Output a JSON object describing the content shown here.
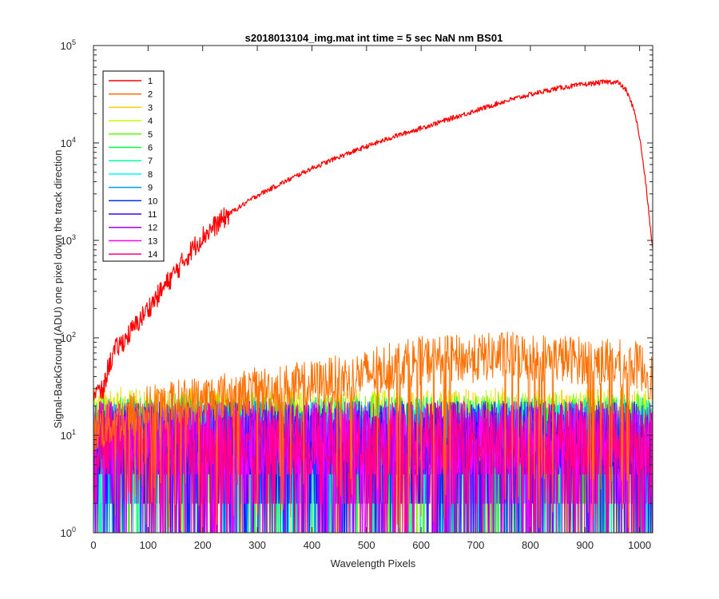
{
  "chart_data": {
    "type": "line",
    "title": "s2018013104_img.mat int time = 5 sec  NaN nm BS01",
    "xlabel": "Wavelength Pixels",
    "ylabel": "Signal-BackGround (ADU) one pixel down the track direction",
    "xlim": [
      0,
      1024
    ],
    "ylim": [
      1,
      100000
    ],
    "yscale": "log",
    "x_ticks": [
      0,
      100,
      200,
      300,
      400,
      500,
      600,
      700,
      800,
      900,
      1000
    ],
    "y_ticks": [
      {
        "base": "10",
        "exp": "0",
        "value": 1
      },
      {
        "base": "10",
        "exp": "1",
        "value": 10
      },
      {
        "base": "10",
        "exp": "2",
        "value": 100
      },
      {
        "base": "10",
        "exp": "3",
        "value": 1000
      },
      {
        "base": "10",
        "exp": "4",
        "value": 10000
      },
      {
        "base": "10",
        "exp": "5",
        "value": 100000
      }
    ],
    "legend_position": "top-left",
    "grid": false,
    "series": [
      {
        "name": "1",
        "color": "#ff0000",
        "points": [
          [
            18,
            28
          ],
          [
            25,
            45
          ],
          [
            30,
            55
          ],
          [
            40,
            75
          ],
          [
            60,
            100
          ],
          [
            80,
            140
          ],
          [
            100,
            200
          ],
          [
            120,
            280
          ],
          [
            140,
            400
          ],
          [
            160,
            560
          ],
          [
            180,
            800
          ],
          [
            200,
            1100
          ],
          [
            250,
            1900
          ],
          [
            300,
            2900
          ],
          [
            350,
            4000
          ],
          [
            400,
            5500
          ],
          [
            450,
            7200
          ],
          [
            500,
            9200
          ],
          [
            550,
            11600
          ],
          [
            600,
            14200
          ],
          [
            650,
            17500
          ],
          [
            700,
            21500
          ],
          [
            750,
            26500
          ],
          [
            800,
            31500
          ],
          [
            850,
            36500
          ],
          [
            900,
            40000
          ],
          [
            940,
            42500
          ],
          [
            960,
            42000
          ],
          [
            975,
            35000
          ],
          [
            990,
            22000
          ],
          [
            1000,
            11500
          ],
          [
            1010,
            4500
          ],
          [
            1024,
            800
          ]
        ]
      },
      {
        "name": "2",
        "color": "#ff7000",
        "points": [
          [
            0,
            12
          ],
          [
            100,
            20
          ],
          [
            200,
            25
          ],
          [
            300,
            30
          ],
          [
            400,
            35
          ],
          [
            500,
            45
          ],
          [
            550,
            55
          ],
          [
            600,
            62
          ],
          [
            700,
            65
          ],
          [
            750,
            70
          ],
          [
            800,
            68
          ],
          [
            900,
            62
          ],
          [
            1000,
            55
          ],
          [
            1024,
            40
          ]
        ]
      },
      {
        "name": "3",
        "color": "#ffd000",
        "level": 14
      },
      {
        "name": "4",
        "color": "#c8ff00",
        "level": 13
      },
      {
        "name": "5",
        "color": "#5aff00",
        "level": 12
      },
      {
        "name": "6",
        "color": "#00ff40",
        "level": 11
      },
      {
        "name": "7",
        "color": "#00ffa0",
        "level": 11
      },
      {
        "name": "8",
        "color": "#00ffff",
        "level": 10
      },
      {
        "name": "9",
        "color": "#0096ff",
        "level": 10
      },
      {
        "name": "10",
        "color": "#0030ff",
        "level": 10
      },
      {
        "name": "11",
        "color": "#3c00ff",
        "level": 10
      },
      {
        "name": "12",
        "color": "#a000ff",
        "level": 10
      },
      {
        "name": "13",
        "color": "#ff00ff",
        "level": 10
      },
      {
        "name": "14",
        "color": "#ff0080",
        "level": 10
      }
    ]
  }
}
